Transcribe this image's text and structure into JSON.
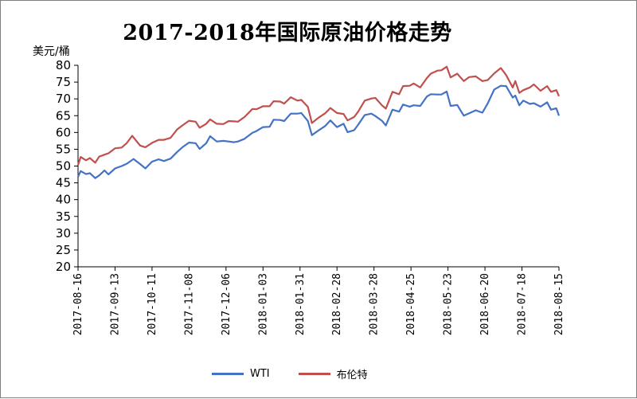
{
  "title": "2017-2018年国际原油价格走势",
  "unit": "美元/桶",
  "chart_data": {
    "type": "line",
    "title": "2017-2018年国际原油价格走势",
    "ylabel": "美元/桶",
    "xlabel": "",
    "ylim": [
      20,
      80
    ],
    "yticks": [
      20,
      25,
      30,
      35,
      40,
      45,
      50,
      55,
      60,
      65,
      70,
      75,
      80
    ],
    "x_ticks": [
      "2017-08-16",
      "2017-09-13",
      "2017-10-11",
      "2017-11-08",
      "2017-12-06",
      "2018-01-03",
      "2018-01-31",
      "2018-02-28",
      "2018-03-28",
      "2018-04-25",
      "2018-05-23",
      "2018-06-20",
      "2018-07-18",
      "2018-08-15"
    ],
    "grid": false,
    "legend_position": "bottom",
    "series": [
      {
        "name": "WTI",
        "color": "#4472c4",
        "points": [
          [
            "2017-08-16",
            46.8
          ],
          [
            "2017-08-18",
            48.5
          ],
          [
            "2017-08-22",
            47.6
          ],
          [
            "2017-08-25",
            47.9
          ],
          [
            "2017-08-29",
            46.4
          ],
          [
            "2017-09-01",
            47.2
          ],
          [
            "2017-09-05",
            48.7
          ],
          [
            "2017-09-08",
            47.5
          ],
          [
            "2017-09-13",
            49.3
          ],
          [
            "2017-09-18",
            50.0
          ],
          [
            "2017-09-22",
            50.7
          ],
          [
            "2017-09-27",
            52.1
          ],
          [
            "2017-10-02",
            50.6
          ],
          [
            "2017-10-06",
            49.3
          ],
          [
            "2017-10-11",
            51.3
          ],
          [
            "2017-10-16",
            52.0
          ],
          [
            "2017-10-20",
            51.5
          ],
          [
            "2017-10-25",
            52.2
          ],
          [
            "2017-10-30",
            54.2
          ],
          [
            "2017-11-03",
            55.6
          ],
          [
            "2017-11-08",
            57.0
          ],
          [
            "2017-11-13",
            56.8
          ],
          [
            "2017-11-16",
            55.1
          ],
          [
            "2017-11-21",
            56.8
          ],
          [
            "2017-11-24",
            58.9
          ],
          [
            "2017-11-29",
            57.3
          ],
          [
            "2017-12-04",
            57.5
          ],
          [
            "2017-12-08",
            57.3
          ],
          [
            "2017-12-12",
            57.1
          ],
          [
            "2017-12-15",
            57.3
          ],
          [
            "2017-12-20",
            58.1
          ],
          [
            "2017-12-26",
            59.9
          ],
          [
            "2017-12-29",
            60.4
          ],
          [
            "2018-01-03",
            61.6
          ],
          [
            "2018-01-08",
            61.7
          ],
          [
            "2018-01-11",
            63.8
          ],
          [
            "2018-01-16",
            63.7
          ],
          [
            "2018-01-19",
            63.4
          ],
          [
            "2018-01-24",
            65.6
          ],
          [
            "2018-01-29",
            65.6
          ],
          [
            "2018-02-01",
            65.8
          ],
          [
            "2018-02-06",
            63.4
          ],
          [
            "2018-02-09",
            59.2
          ],
          [
            "2018-02-14",
            60.6
          ],
          [
            "2018-02-19",
            61.9
          ],
          [
            "2018-02-23",
            63.6
          ],
          [
            "2018-02-28",
            61.6
          ],
          [
            "2018-03-05",
            62.6
          ],
          [
            "2018-03-08",
            60.1
          ],
          [
            "2018-03-13",
            60.7
          ],
          [
            "2018-03-16",
            62.3
          ],
          [
            "2018-03-21",
            65.2
          ],
          [
            "2018-03-26",
            65.6
          ],
          [
            "2018-03-29",
            64.9
          ],
          [
            "2018-04-03",
            63.5
          ],
          [
            "2018-04-06",
            62.1
          ],
          [
            "2018-04-11",
            66.8
          ],
          [
            "2018-04-16",
            66.2
          ],
          [
            "2018-04-19",
            68.3
          ],
          [
            "2018-04-24",
            67.7
          ],
          [
            "2018-04-27",
            68.1
          ],
          [
            "2018-05-02",
            67.9
          ],
          [
            "2018-05-07",
            70.7
          ],
          [
            "2018-05-10",
            71.4
          ],
          [
            "2018-05-15",
            71.3
          ],
          [
            "2018-05-18",
            71.3
          ],
          [
            "2018-05-22",
            72.2
          ],
          [
            "2018-05-25",
            67.9
          ],
          [
            "2018-05-30",
            68.2
          ],
          [
            "2018-06-04",
            65.0
          ],
          [
            "2018-06-08",
            65.7
          ],
          [
            "2018-06-13",
            66.6
          ],
          [
            "2018-06-18",
            65.9
          ],
          [
            "2018-06-22",
            68.6
          ],
          [
            "2018-06-27",
            72.8
          ],
          [
            "2018-07-02",
            73.9
          ],
          [
            "2018-07-06",
            73.8
          ],
          [
            "2018-07-11",
            70.4
          ],
          [
            "2018-07-13",
            71.0
          ],
          [
            "2018-07-16",
            68.1
          ],
          [
            "2018-07-19",
            69.5
          ],
          [
            "2018-07-24",
            68.5
          ],
          [
            "2018-07-27",
            68.7
          ],
          [
            "2018-08-01",
            67.7
          ],
          [
            "2018-08-06",
            69.0
          ],
          [
            "2018-08-09",
            66.8
          ],
          [
            "2018-08-13",
            67.2
          ],
          [
            "2018-08-15",
            65.0
          ]
        ]
      },
      {
        "name": "布伦特",
        "color": "#c0504d",
        "points": [
          [
            "2017-08-16",
            50.3
          ],
          [
            "2017-08-18",
            52.7
          ],
          [
            "2017-08-22",
            51.7
          ],
          [
            "2017-08-25",
            52.4
          ],
          [
            "2017-08-29",
            51.0
          ],
          [
            "2017-09-01",
            52.8
          ],
          [
            "2017-09-05",
            53.4
          ],
          [
            "2017-09-08",
            53.8
          ],
          [
            "2017-09-13",
            55.3
          ],
          [
            "2017-09-18",
            55.5
          ],
          [
            "2017-09-22",
            56.9
          ],
          [
            "2017-09-26",
            59.0
          ],
          [
            "2017-10-02",
            56.1
          ],
          [
            "2017-10-06",
            55.6
          ],
          [
            "2017-10-11",
            56.9
          ],
          [
            "2017-10-16",
            57.8
          ],
          [
            "2017-10-20",
            57.8
          ],
          [
            "2017-10-25",
            58.4
          ],
          [
            "2017-10-30",
            60.9
          ],
          [
            "2017-11-03",
            62.1
          ],
          [
            "2017-11-08",
            63.5
          ],
          [
            "2017-11-13",
            63.2
          ],
          [
            "2017-11-16",
            61.4
          ],
          [
            "2017-11-21",
            62.6
          ],
          [
            "2017-11-24",
            63.9
          ],
          [
            "2017-11-29",
            62.6
          ],
          [
            "2017-12-04",
            62.5
          ],
          [
            "2017-12-08",
            63.4
          ],
          [
            "2017-12-12",
            63.3
          ],
          [
            "2017-12-15",
            63.2
          ],
          [
            "2017-12-20",
            64.6
          ],
          [
            "2017-12-26",
            67.0
          ],
          [
            "2017-12-29",
            66.9
          ],
          [
            "2018-01-03",
            67.8
          ],
          [
            "2018-01-08",
            67.8
          ],
          [
            "2018-01-11",
            69.3
          ],
          [
            "2018-01-16",
            69.2
          ],
          [
            "2018-01-19",
            68.6
          ],
          [
            "2018-01-24",
            70.5
          ],
          [
            "2018-01-29",
            69.5
          ],
          [
            "2018-02-01",
            69.7
          ],
          [
            "2018-02-06",
            67.6
          ],
          [
            "2018-02-09",
            62.8
          ],
          [
            "2018-02-14",
            64.4
          ],
          [
            "2018-02-19",
            65.7
          ],
          [
            "2018-02-23",
            67.3
          ],
          [
            "2018-02-28",
            65.8
          ],
          [
            "2018-03-05",
            65.5
          ],
          [
            "2018-03-08",
            63.6
          ],
          [
            "2018-03-13",
            64.6
          ],
          [
            "2018-03-16",
            66.2
          ],
          [
            "2018-03-21",
            69.5
          ],
          [
            "2018-03-26",
            70.1
          ],
          [
            "2018-03-29",
            70.3
          ],
          [
            "2018-04-03",
            68.1
          ],
          [
            "2018-04-06",
            67.1
          ],
          [
            "2018-04-11",
            72.1
          ],
          [
            "2018-04-16",
            71.4
          ],
          [
            "2018-04-19",
            73.8
          ],
          [
            "2018-04-24",
            73.9
          ],
          [
            "2018-04-27",
            74.6
          ],
          [
            "2018-05-02",
            73.4
          ],
          [
            "2018-05-07",
            76.2
          ],
          [
            "2018-05-10",
            77.5
          ],
          [
            "2018-05-15",
            78.4
          ],
          [
            "2018-05-18",
            78.5
          ],
          [
            "2018-05-22",
            79.6
          ],
          [
            "2018-05-25",
            76.4
          ],
          [
            "2018-05-30",
            77.5
          ],
          [
            "2018-06-04",
            75.3
          ],
          [
            "2018-06-08",
            76.5
          ],
          [
            "2018-06-13",
            76.7
          ],
          [
            "2018-06-18",
            75.3
          ],
          [
            "2018-06-22",
            75.6
          ],
          [
            "2018-06-27",
            77.6
          ],
          [
            "2018-07-02",
            79.2
          ],
          [
            "2018-07-06",
            77.1
          ],
          [
            "2018-07-11",
            73.4
          ],
          [
            "2018-07-13",
            75.3
          ],
          [
            "2018-07-16",
            71.8
          ],
          [
            "2018-07-19",
            72.6
          ],
          [
            "2018-07-24",
            73.4
          ],
          [
            "2018-07-27",
            74.3
          ],
          [
            "2018-08-01",
            72.4
          ],
          [
            "2018-08-06",
            73.8
          ],
          [
            "2018-08-09",
            72.1
          ],
          [
            "2018-08-13",
            72.6
          ],
          [
            "2018-08-15",
            70.8
          ]
        ]
      }
    ]
  }
}
